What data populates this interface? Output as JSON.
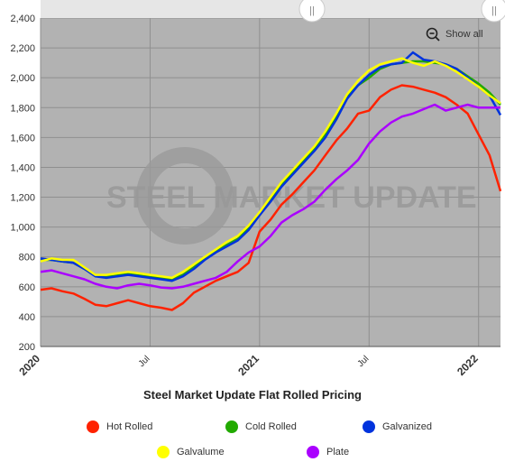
{
  "chart_data": {
    "type": "line",
    "title": "Steel Market Update Flat Rolled Pricing",
    "watermark": "STEEL MARKET UPDATE",
    "x_tick_labels": [
      "2020",
      "Jul",
      "2021",
      "Jul",
      "2022"
    ],
    "y_ticks": [
      200,
      400,
      600,
      800,
      1000,
      1200,
      1400,
      1600,
      1800,
      2000,
      2200,
      2400
    ],
    "y_tick_labels": [
      "200",
      "400",
      "600",
      "800",
      "1,000",
      "1,200",
      "1,400",
      "1,600",
      "1,800",
      "2,000",
      "2,200",
      "2,400"
    ],
    "ylim": [
      200,
      2400
    ],
    "xlim": [
      2020.0,
      2022.1
    ],
    "grid": true,
    "legend_placement": "bottom",
    "series": [
      {
        "name": "Hot Rolled",
        "color": "#ff2200",
        "x": [
          2020.0,
          2020.05,
          2020.1,
          2020.15,
          2020.2,
          2020.25,
          2020.3,
          2020.35,
          2020.4,
          2020.45,
          2020.5,
          2020.55,
          2020.6,
          2020.65,
          2020.7,
          2020.75,
          2020.8,
          2020.85,
          2020.9,
          2020.95,
          2021.0,
          2021.05,
          2021.1,
          2021.15,
          2021.2,
          2021.25,
          2021.3,
          2021.35,
          2021.4,
          2021.45,
          2021.5,
          2021.55,
          2021.6,
          2021.65,
          2021.7,
          2021.75,
          2021.8,
          2021.85,
          2021.9,
          2021.95,
          2022.0,
          2022.05,
          2022.1
        ],
        "values": [
          580,
          590,
          570,
          555,
          520,
          480,
          470,
          490,
          510,
          490,
          470,
          460,
          445,
          490,
          560,
          600,
          640,
          670,
          700,
          760,
          970,
          1050,
          1150,
          1220,
          1300,
          1380,
          1480,
          1580,
          1660,
          1760,
          1780,
          1870,
          1920,
          1950,
          1940,
          1920,
          1900,
          1870,
          1820,
          1760,
          1620,
          1480,
          1240
        ]
      },
      {
        "name": "Cold Rolled",
        "color": "#22aa00",
        "x": [
          2020.0,
          2020.05,
          2020.1,
          2020.15,
          2020.2,
          2020.25,
          2020.3,
          2020.35,
          2020.4,
          2020.45,
          2020.5,
          2020.55,
          2020.6,
          2020.65,
          2020.7,
          2020.75,
          2020.8,
          2020.85,
          2020.9,
          2020.95,
          2021.0,
          2021.05,
          2021.1,
          2021.15,
          2021.2,
          2021.25,
          2021.3,
          2021.35,
          2021.4,
          2021.45,
          2021.5,
          2021.55,
          2021.6,
          2021.65,
          2021.7,
          2021.75,
          2021.8,
          2021.85,
          2021.9,
          2021.95,
          2022.0,
          2022.05,
          2022.1
        ],
        "values": [
          780,
          780,
          770,
          760,
          720,
          680,
          670,
          680,
          690,
          680,
          670,
          660,
          650,
          680,
          730,
          790,
          840,
          880,
          920,
          990,
          1080,
          1180,
          1280,
          1360,
          1440,
          1520,
          1620,
          1740,
          1870,
          1950,
          2000,
          2060,
          2090,
          2100,
          2110,
          2110,
          2100,
          2090,
          2060,
          2010,
          1960,
          1900,
          1820
        ]
      },
      {
        "name": "Galvanized",
        "color": "#0033dd",
        "x": [
          2020.0,
          2020.05,
          2020.1,
          2020.15,
          2020.2,
          2020.25,
          2020.3,
          2020.35,
          2020.4,
          2020.45,
          2020.5,
          2020.55,
          2020.6,
          2020.65,
          2020.7,
          2020.75,
          2020.8,
          2020.85,
          2020.9,
          2020.95,
          2021.0,
          2021.05,
          2021.1,
          2021.15,
          2021.2,
          2021.25,
          2021.3,
          2021.35,
          2021.4,
          2021.45,
          2021.5,
          2021.55,
          2021.6,
          2021.65,
          2021.7,
          2021.75,
          2021.8,
          2021.85,
          2021.9,
          2021.95,
          2022.0,
          2022.05,
          2022.1
        ],
        "values": [
          790,
          780,
          770,
          760,
          720,
          670,
          660,
          670,
          680,
          670,
          660,
          650,
          640,
          670,
          720,
          780,
          830,
          870,
          910,
          980,
          1080,
          1170,
          1270,
          1350,
          1430,
          1510,
          1600,
          1720,
          1860,
          1950,
          2020,
          2070,
          2090,
          2100,
          2170,
          2120,
          2110,
          2090,
          2060,
          2000,
          1940,
          1880,
          1750
        ]
      },
      {
        "name": "Galvalume",
        "color": "#ffff00",
        "x": [
          2020.0,
          2020.05,
          2020.1,
          2020.15,
          2020.2,
          2020.25,
          2020.3,
          2020.35,
          2020.4,
          2020.45,
          2020.5,
          2020.55,
          2020.6,
          2020.65,
          2020.7,
          2020.75,
          2020.8,
          2020.85,
          2020.9,
          2020.95,
          2021.0,
          2021.05,
          2021.1,
          2021.15,
          2021.2,
          2021.25,
          2021.3,
          2021.35,
          2021.4,
          2021.45,
          2021.5,
          2021.55,
          2021.6,
          2021.65,
          2021.7,
          2021.75,
          2021.8,
          2021.85,
          2021.9,
          2021.95,
          2022.0,
          2022.05,
          2022.1
        ],
        "values": [
          770,
          790,
          780,
          780,
          730,
          680,
          680,
          690,
          700,
          690,
          680,
          670,
          660,
          700,
          750,
          800,
          850,
          900,
          940,
          1010,
          1100,
          1200,
          1300,
          1380,
          1460,
          1540,
          1640,
          1760,
          1890,
          1980,
          2050,
          2090,
          2110,
          2130,
          2100,
          2080,
          2110,
          2080,
          2040,
          1990,
          1940,
          1880,
          1830
        ]
      },
      {
        "name": "Plate",
        "color": "#aa00ff",
        "x": [
          2020.0,
          2020.05,
          2020.1,
          2020.15,
          2020.2,
          2020.25,
          2020.3,
          2020.35,
          2020.4,
          2020.45,
          2020.5,
          2020.55,
          2020.6,
          2020.65,
          2020.7,
          2020.75,
          2020.8,
          2020.85,
          2020.9,
          2020.95,
          2021.0,
          2021.05,
          2021.1,
          2021.15,
          2021.2,
          2021.25,
          2021.3,
          2021.35,
          2021.4,
          2021.45,
          2021.5,
          2021.55,
          2021.6,
          2021.65,
          2021.7,
          2021.75,
          2021.8,
          2021.85,
          2021.9,
          2021.95,
          2022.0,
          2022.05,
          2022.1
        ],
        "values": [
          700,
          710,
          690,
          670,
          650,
          620,
          600,
          590,
          610,
          620,
          610,
          595,
          590,
          600,
          620,
          640,
          660,
          700,
          770,
          830,
          870,
          940,
          1030,
          1080,
          1120,
          1170,
          1250,
          1320,
          1380,
          1450,
          1560,
          1640,
          1700,
          1740,
          1760,
          1790,
          1820,
          1780,
          1800,
          1820,
          1800,
          1800,
          1800
        ]
      }
    ]
  },
  "ui": {
    "show_all_label": "Show all",
    "navigator_handle_left": "||",
    "navigator_handle_right": "||"
  }
}
